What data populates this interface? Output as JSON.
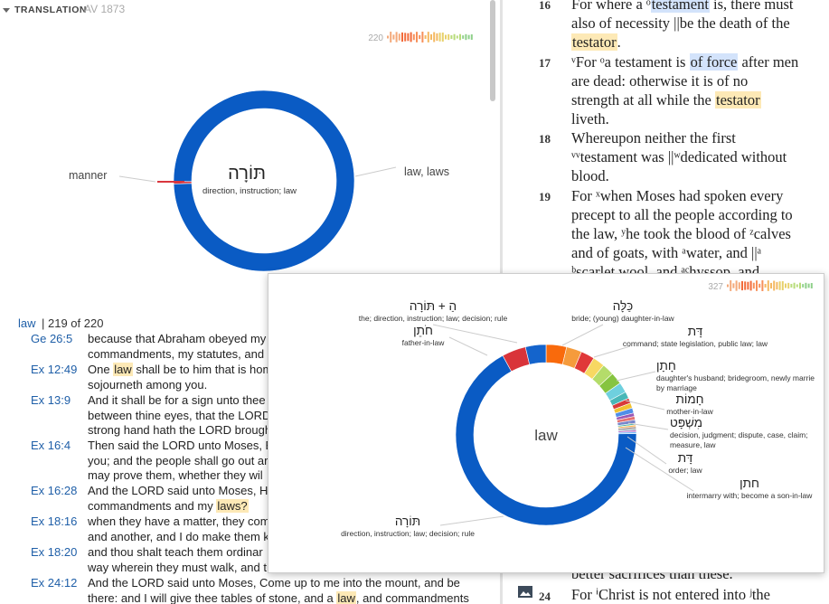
{
  "left_panel": {
    "header": {
      "label": "TRANSLATION",
      "version": "AV 1873"
    },
    "count": "220",
    "donut": {
      "type": "pie",
      "center_word": "תּוֹרָה",
      "center_gloss": "direction, instruction; law",
      "segments": [
        {
          "name": "manner",
          "value": 1,
          "color": "#d9363e"
        },
        {
          "name": "law, laws",
          "value": 219,
          "color": "#0a5bc4"
        }
      ]
    },
    "list_header": {
      "word": "law",
      "count": "| 219 of 220"
    },
    "entries": [
      {
        "ref": "Ge 26:5",
        "lines": [
          [
            "because that Abraham obeyed my"
          ],
          [
            "commandments, my statutes, and"
          ]
        ]
      },
      {
        "ref": "Ex 12:49",
        "lines": [
          [
            "One ",
            {
              "text": "law",
              "highlight": "#fde9b6"
            },
            " shall be to him that is hom"
          ],
          [
            "sojourneth among you."
          ]
        ]
      },
      {
        "ref": "Ex 13:9",
        "lines": [
          [
            "And it shall be for a sign unto thee"
          ],
          [
            "between thine eyes, that the LORD'"
          ],
          [
            "strong hand hath the LORD brough"
          ]
        ]
      },
      {
        "ref": "Ex 16:4",
        "lines": [
          [
            "Then said the LORD unto Moses, Be"
          ],
          [
            "you; and the people shall go out ar"
          ],
          [
            "may prove them, whether they wil"
          ]
        ]
      },
      {
        "ref": "Ex 16:28",
        "lines": [
          [
            "And the LORD said unto Moses, How"
          ],
          [
            "commandments and my ",
            {
              "text": "laws?",
              "highlight": "#fde9b6"
            }
          ]
        ]
      },
      {
        "ref": "Ex 18:16",
        "lines": [
          [
            "when they have a matter, they com"
          ],
          [
            "and another, and I do make them k"
          ]
        ]
      },
      {
        "ref": "Ex 18:20",
        "lines": [
          [
            "and thou shalt teach them ordinar"
          ],
          [
            "way wherein they must walk, and t"
          ]
        ]
      },
      {
        "ref": "Ex 24:12",
        "lines": [
          [
            "And the LORD said unto Moses, Come up to me into the mount, and be"
          ],
          [
            "there: and I will give thee tables of stone, and a ",
            {
              "text": "law",
              "highlight": "#fde9b6"
            },
            ", and commandments"
          ]
        ]
      }
    ]
  },
  "right_panel": {
    "verses": [
      {
        "num": "16",
        "lines": [
          [
            "For where a ᵒ",
            {
              "text": "testament",
              "highlight": "#d3e3fb"
            },
            " is, there must"
          ],
          [
            "also of necessity ||be the death of the"
          ],
          [
            {
              "text": "testator",
              "highlight": "#fde9b6"
            },
            "."
          ]
        ]
      },
      {
        "num": "17",
        "lines": [
          [
            "ᵛFor ᵒa testament is ",
            {
              "text": "of force",
              "highlight": "#d3e3fb"
            },
            " after men"
          ],
          [
            "are dead: otherwise it is of no"
          ],
          [
            "strength at all while the ",
            {
              "text": "testator",
              "highlight": "#fde9b6"
            }
          ],
          [
            "liveth."
          ]
        ]
      },
      {
        "num": "18",
        "lines": [
          [
            "Whereupon neither the first"
          ],
          [
            "ᵛᵛtestament was ||ʷdedicated without"
          ],
          [
            "blood."
          ]
        ]
      },
      {
        "num": "19",
        "lines": [
          [
            "For ˣwhen Moses had spoken every"
          ],
          [
            "precept to all the people according to"
          ],
          [
            "the law, ʸhe took the blood of ᶻcalves"
          ],
          [
            "and of goats, with ᵃwater, and ||ᵃ"
          ],
          [
            "ᵇscarlet wool, and ᵃᶜhyssop, and"
          ]
        ]
      }
    ],
    "below_popup": "better sacrifices than these.",
    "last_verse": {
      "num": "24",
      "text": "For ⁱChrist is not entered into ʲthe"
    }
  },
  "popup": {
    "count": "327",
    "donut": {
      "type": "pie",
      "center": "law",
      "segments": [
        {
          "value": 12,
          "color": "#f96a0c"
        },
        {
          "value": 9,
          "color": "#f59b3c"
        },
        {
          "value": 8,
          "color": "#e03838"
        },
        {
          "value": 7,
          "color": "#f7d862"
        },
        {
          "value": 7,
          "color": "#b4dc6a"
        },
        {
          "value": 7,
          "color": "#86c440"
        },
        {
          "value": 6,
          "color": "#6fd0de"
        },
        {
          "value": 4,
          "color": "#49b7b7"
        },
        {
          "value": 3,
          "color": "#d83a3a"
        },
        {
          "value": 3,
          "color": "#f1c232"
        },
        {
          "value": 3,
          "color": "#4f8ee8"
        },
        {
          "value": 2,
          "color": "#9b59b6"
        },
        {
          "value": 2,
          "color": "#e57373"
        },
        {
          "value": 2,
          "color": "#7986cb"
        },
        {
          "value": 1,
          "color": "#4db6ac"
        },
        {
          "value": 1,
          "color": "#ffb74d"
        },
        {
          "value": 1,
          "color": "#a1887f"
        },
        {
          "value": 1,
          "color": "#90a4ae"
        },
        {
          "value": 1,
          "color": "#ba68c8"
        },
        {
          "value": 1,
          "color": "#64b5f6"
        },
        {
          "value": 220,
          "color": "#0a5bc4"
        },
        {
          "value": 14,
          "color": "#d9343a"
        },
        {
          "value": 12,
          "color": "#1464cc"
        }
      ],
      "labels": [
        {
          "word": "הַ + תּוֹרָה",
          "gloss": [
            "the; direction, instruction; law; decision; rule"
          ]
        },
        {
          "word": "חֹתֵן",
          "gloss": [
            "father-in-law"
          ]
        },
        {
          "word": "כַּלָּה",
          "gloss": [
            "bride; (young) daughter-in-law"
          ]
        },
        {
          "word": "דָּת",
          "gloss": [
            "command; state legislation, public law; law"
          ]
        },
        {
          "word": "חָתָן",
          "gloss": [
            "daughter's husband; bridegroom, newly marrie",
            "by marriage"
          ]
        },
        {
          "word": "חָמוֹת",
          "gloss": [
            "mother-in-law"
          ]
        },
        {
          "word": "מִשְׁפָּט",
          "gloss": [
            "decision, judgment; dispute, case, claim;",
            "measure, law"
          ]
        },
        {
          "word": "דָּת",
          "gloss": [
            "order; law"
          ]
        },
        {
          "word": "חתן",
          "gloss": [
            "intermarry with; become a son-in-law"
          ]
        },
        {
          "word": "תּוֹרָה",
          "gloss": [
            "direction, instruction; law; decision; rule"
          ]
        }
      ]
    }
  }
}
